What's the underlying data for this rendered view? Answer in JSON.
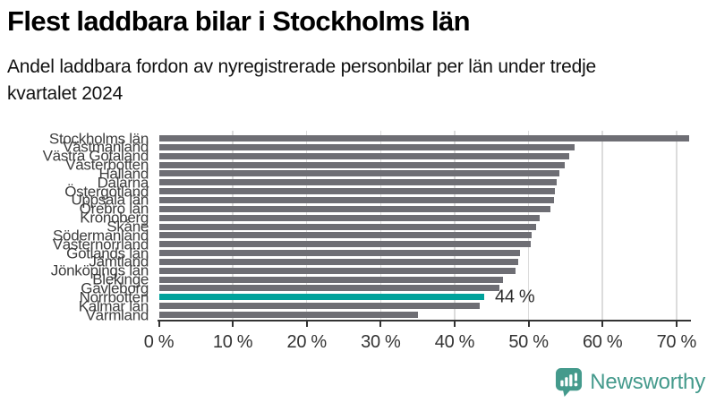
{
  "header": {
    "title": "Flest laddbara bilar i Stockholms län",
    "subtitle_lines": [
      "Andel laddbara fordon av nyregistrerade personbilar per län under tredje",
      "kvartalet 2024"
    ]
  },
  "chart_data": {
    "type": "bar",
    "orientation": "horizontal",
    "title": "Flest laddbara bilar i Stockholms län",
    "subtitle": "Andel laddbara fordon av nyregistrerade personbilar per län under tredje kvartalet 2024",
    "categories": [
      "Stockholms län",
      "Västmanland",
      "Västra Götaland",
      "Västerbotten",
      "Halland",
      "Dalarna",
      "Östergötland",
      "Uppsala län",
      "Örebro län",
      "Kronoberg",
      "Skåne",
      "Södermanland",
      "Västernorrland",
      "Gotlands län",
      "Jämtland",
      "Jönköpings län",
      "Blekinge",
      "Gävleborg",
      "Norrbotten",
      "Kalmar län",
      "Värmland"
    ],
    "values": [
      71.7,
      56.2,
      55.5,
      54.9,
      54.2,
      53.8,
      53.6,
      53.4,
      52.9,
      51.5,
      51.0,
      50.4,
      50.3,
      48.8,
      48.6,
      48.2,
      46.5,
      46.0,
      44.0,
      43.4,
      35.0
    ],
    "unit": "%",
    "highlight_index": 18,
    "annotation": {
      "text": "44 %",
      "value": 44
    },
    "x_ticks": [
      0,
      10,
      20,
      30,
      40,
      50,
      60,
      70
    ],
    "x_tick_labels": [
      "0 %",
      "10 %",
      "20 %",
      "30 %",
      "40 %",
      "50 %",
      "60 %",
      "70 %"
    ],
    "xlim": [
      0,
      71.9
    ],
    "grid": true,
    "legend": false,
    "bar_color": "#6e6e74",
    "highlight_color": "#00a29b",
    "grid_color": "#dcdcdc",
    "axis_color": "#333333"
  },
  "footer": {
    "brand": "Newsworthy",
    "brand_color": "#449a8c"
  }
}
